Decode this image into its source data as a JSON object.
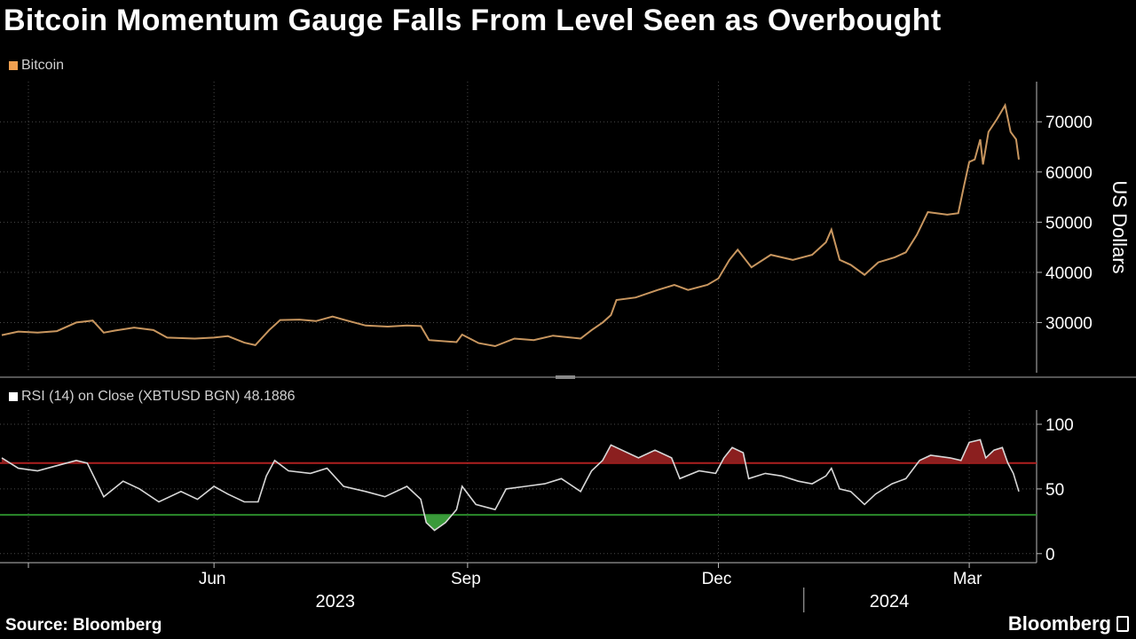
{
  "title": "Bitcoin Momentum Gauge Falls From Level Seen as Overbought",
  "source": "Source: Bloomberg",
  "brand": "Bloomberg",
  "chart_data": [
    {
      "type": "line",
      "legend": "Bitcoin",
      "ylabel": "US Dollars",
      "yticks": [
        30000,
        40000,
        50000,
        60000,
        70000
      ],
      "ylim": [
        20000,
        78000
      ],
      "xlim": [
        "2023-03-16",
        "2024-03-19"
      ],
      "xticks": [
        {
          "date": "2023-06-01",
          "label": "Jun"
        },
        {
          "date": "2023-09-01",
          "label": "Sep"
        },
        {
          "date": "2023-12-01",
          "label": "Dec"
        },
        {
          "date": "2024-03-01",
          "label": "Mar"
        }
      ],
      "years": [
        {
          "date": "2023-07-15",
          "label": "2023"
        },
        {
          "date": "2024-02-01",
          "label": "2024"
        }
      ],
      "grid": true,
      "colors": {
        "line": "#c8965f",
        "legend": "#f0a050"
      },
      "series": [
        {
          "name": "Bitcoin",
          "points": [
            [
              "2023-03-16",
              27500
            ],
            [
              "2023-03-22",
              28200
            ],
            [
              "2023-03-29",
              28000
            ],
            [
              "2023-04-05",
              28300
            ],
            [
              "2023-04-12",
              30000
            ],
            [
              "2023-04-18",
              30400
            ],
            [
              "2023-04-22",
              28000
            ],
            [
              "2023-04-26",
              28400
            ],
            [
              "2023-05-03",
              29000
            ],
            [
              "2023-05-10",
              28500
            ],
            [
              "2023-05-15",
              27000
            ],
            [
              "2023-05-25",
              26800
            ],
            [
              "2023-06-01",
              27000
            ],
            [
              "2023-06-06",
              27300
            ],
            [
              "2023-06-12",
              26000
            ],
            [
              "2023-06-16",
              25500
            ],
            [
              "2023-06-21",
              28500
            ],
            [
              "2023-06-25",
              30500
            ],
            [
              "2023-07-02",
              30600
            ],
            [
              "2023-07-08",
              30300
            ],
            [
              "2023-07-14",
              31200
            ],
            [
              "2023-07-20",
              30300
            ],
            [
              "2023-07-26",
              29400
            ],
            [
              "2023-08-03",
              29200
            ],
            [
              "2023-08-10",
              29400
            ],
            [
              "2023-08-15",
              29300
            ],
            [
              "2023-08-18",
              26500
            ],
            [
              "2023-08-28",
              26100
            ],
            [
              "2023-08-30",
              27600
            ],
            [
              "2023-09-05",
              25900
            ],
            [
              "2023-09-11",
              25300
            ],
            [
              "2023-09-18",
              26800
            ],
            [
              "2023-09-25",
              26500
            ],
            [
              "2023-10-02",
              27400
            ],
            [
              "2023-10-12",
              26800
            ],
            [
              "2023-10-16",
              28500
            ],
            [
              "2023-10-20",
              30000
            ],
            [
              "2023-10-23",
              31500
            ],
            [
              "2023-10-25",
              34500
            ],
            [
              "2023-11-01",
              35000
            ],
            [
              "2023-11-09",
              36500
            ],
            [
              "2023-11-15",
              37500
            ],
            [
              "2023-11-20",
              36500
            ],
            [
              "2023-11-27",
              37500
            ],
            [
              "2023-12-01",
              38800
            ],
            [
              "2023-12-05",
              42500
            ],
            [
              "2023-12-08",
              44500
            ],
            [
              "2023-12-13",
              41000
            ],
            [
              "2023-12-20",
              43500
            ],
            [
              "2023-12-28",
              42500
            ],
            [
              "2024-01-04",
              43500
            ],
            [
              "2024-01-09",
              46000
            ],
            [
              "2024-01-11",
              48500
            ],
            [
              "2024-01-14",
              42500
            ],
            [
              "2024-01-18",
              41500
            ],
            [
              "2024-01-23",
              39500
            ],
            [
              "2024-01-28",
              42000
            ],
            [
              "2024-02-03",
              43000
            ],
            [
              "2024-02-07",
              44000
            ],
            [
              "2024-02-11",
              47500
            ],
            [
              "2024-02-15",
              52000
            ],
            [
              "2024-02-22",
              51500
            ],
            [
              "2024-02-26",
              51800
            ],
            [
              "2024-02-28",
              57000
            ],
            [
              "2024-03-01",
              62000
            ],
            [
              "2024-03-03",
              62500
            ],
            [
              "2024-03-05",
              66500
            ],
            [
              "2024-03-06",
              61500
            ],
            [
              "2024-03-08",
              68000
            ],
            [
              "2024-03-11",
              70500
            ],
            [
              "2024-03-14",
              73300
            ],
            [
              "2024-03-16",
              68000
            ],
            [
              "2024-03-18",
              66500
            ],
            [
              "2024-03-19",
              62500
            ]
          ]
        }
      ]
    },
    {
      "type": "area",
      "legend": "RSI (14)  on Close (XBTUSD BGN) 48.1886",
      "yticks": [
        0,
        50,
        100
      ],
      "ylim": [
        -7,
        111
      ],
      "xlim": [
        "2023-03-16",
        "2024-03-19"
      ],
      "levels": [
        70,
        30
      ],
      "grid": true,
      "colors": {
        "line": "#d8d8d8",
        "overbought": "#b02020",
        "oversold": "#2a8a2a",
        "fill_over": "#8b1f1f",
        "fill_under": "#3a9a3a"
      },
      "series": [
        {
          "name": "RSI (14)",
          "points": [
            [
              "2023-03-16",
              74
            ],
            [
              "2023-03-22",
              66
            ],
            [
              "2023-03-29",
              64
            ],
            [
              "2023-04-05",
              68
            ],
            [
              "2023-04-12",
              72
            ],
            [
              "2023-04-16",
              70
            ],
            [
              "2023-04-22",
              44
            ],
            [
              "2023-04-29",
              56
            ],
            [
              "2023-05-05",
              50
            ],
            [
              "2023-05-12",
              40
            ],
            [
              "2023-05-20",
              48
            ],
            [
              "2023-05-26",
              42
            ],
            [
              "2023-06-01",
              52
            ],
            [
              "2023-06-06",
              46
            ],
            [
              "2023-06-12",
              40
            ],
            [
              "2023-06-17",
              40
            ],
            [
              "2023-06-20",
              60
            ],
            [
              "2023-06-23",
              72
            ],
            [
              "2023-06-28",
              64
            ],
            [
              "2023-07-06",
              62
            ],
            [
              "2023-07-12",
              66
            ],
            [
              "2023-07-18",
              52
            ],
            [
              "2023-07-26",
              48
            ],
            [
              "2023-08-02",
              44
            ],
            [
              "2023-08-10",
              52
            ],
            [
              "2023-08-15",
              42
            ],
            [
              "2023-08-17",
              24
            ],
            [
              "2023-08-20",
              18
            ],
            [
              "2023-08-24",
              24
            ],
            [
              "2023-08-28",
              34
            ],
            [
              "2023-08-30",
              52
            ],
            [
              "2023-09-04",
              38
            ],
            [
              "2023-09-11",
              34
            ],
            [
              "2023-09-15",
              50
            ],
            [
              "2023-09-22",
              52
            ],
            [
              "2023-09-29",
              54
            ],
            [
              "2023-10-05",
              58
            ],
            [
              "2023-10-12",
              48
            ],
            [
              "2023-10-16",
              64
            ],
            [
              "2023-10-20",
              72
            ],
            [
              "2023-10-23",
              84
            ],
            [
              "2023-10-27",
              80
            ],
            [
              "2023-11-02",
              74
            ],
            [
              "2023-11-08",
              80
            ],
            [
              "2023-11-14",
              74
            ],
            [
              "2023-11-17",
              58
            ],
            [
              "2023-11-24",
              64
            ],
            [
              "2023-11-30",
              62
            ],
            [
              "2023-12-03",
              74
            ],
            [
              "2023-12-06",
              82
            ],
            [
              "2023-12-10",
              78
            ],
            [
              "2023-12-12",
              58
            ],
            [
              "2023-12-18",
              62
            ],
            [
              "2023-12-24",
              60
            ],
            [
              "2023-12-30",
              56
            ],
            [
              "2024-01-04",
              54
            ],
            [
              "2024-01-09",
              60
            ],
            [
              "2024-01-11",
              66
            ],
            [
              "2024-01-14",
              50
            ],
            [
              "2024-01-18",
              48
            ],
            [
              "2024-01-23",
              38
            ],
            [
              "2024-01-27",
              46
            ],
            [
              "2024-02-02",
              54
            ],
            [
              "2024-02-07",
              58
            ],
            [
              "2024-02-12",
              72
            ],
            [
              "2024-02-16",
              76
            ],
            [
              "2024-02-23",
              74
            ],
            [
              "2024-02-27",
              72
            ],
            [
              "2024-03-01",
              86
            ],
            [
              "2024-03-05",
              88
            ],
            [
              "2024-03-07",
              74
            ],
            [
              "2024-03-10",
              80
            ],
            [
              "2024-03-13",
              82
            ],
            [
              "2024-03-15",
              70
            ],
            [
              "2024-03-17",
              62
            ],
            [
              "2024-03-19",
              48
            ]
          ]
        }
      ]
    }
  ]
}
